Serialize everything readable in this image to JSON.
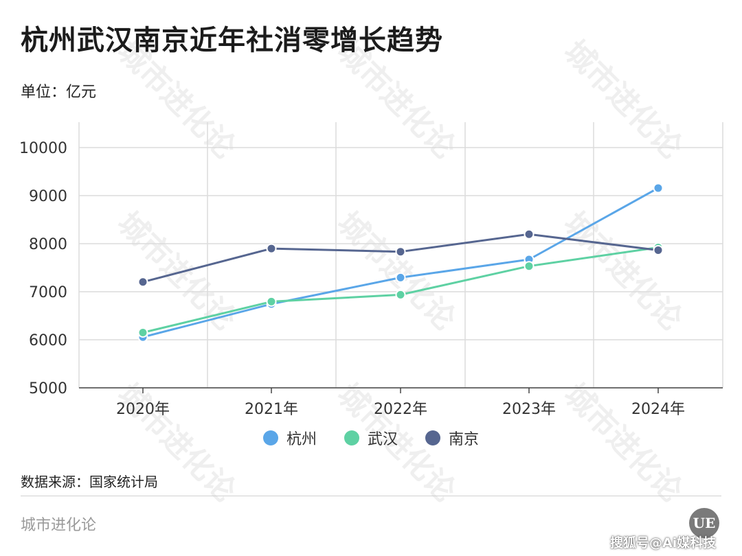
{
  "header": {
    "title": "杭州武汉南京近年社消零增长趋势",
    "unit": "单位：亿元"
  },
  "footer": {
    "source": "数据来源：国家统计局",
    "brand": "城市进化论",
    "logo_text": "UE",
    "credit": "搜狐号@Ai媒科技"
  },
  "watermark": {
    "text": "城市进化论"
  },
  "colors": {
    "杭州": "#5aa6e8",
    "武汉": "#5ed1a3",
    "南京": "#566690",
    "grid": "#dcdcdc",
    "axis": "#444444"
  },
  "chart_data": {
    "type": "line",
    "categories": [
      "2020年",
      "2021年",
      "2022年",
      "2023年",
      "2024年"
    ],
    "series": [
      {
        "name": "杭州",
        "values": [
          6055,
          6744,
          7294,
          7671,
          9158
        ]
      },
      {
        "name": "武汉",
        "values": [
          6150,
          6795,
          6937,
          7533,
          7921
        ]
      },
      {
        "name": "南京",
        "values": [
          7203,
          7899,
          7833,
          8197,
          7865
        ]
      }
    ],
    "ylim": [
      5000,
      10000
    ],
    "yticks": [
      5000,
      6000,
      7000,
      8000,
      9000,
      10000
    ],
    "grid": true,
    "legend": "bottom-center"
  }
}
